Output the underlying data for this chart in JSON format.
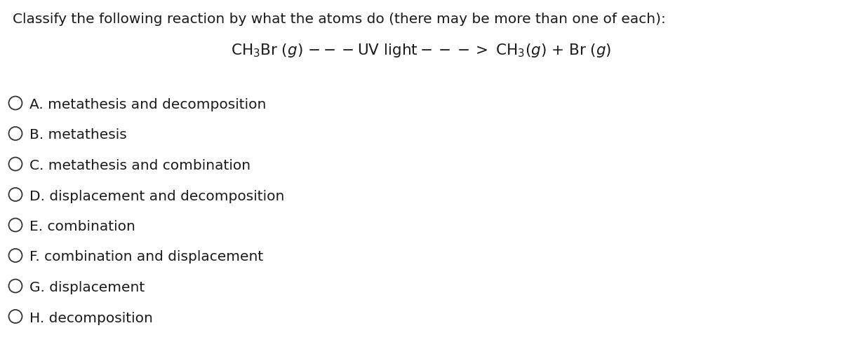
{
  "title": "Classify the following reaction by what the atoms do (there may be more than one of each):",
  "equation": "CH₃Br (g) ---UV light---> CH₃(g) + Br (g)",
  "options": [
    "A. metathesis and decomposition",
    "B. metathesis",
    "C. metathesis and combination",
    "D. displacement and decomposition",
    "E. combination",
    "F. combination and displacement",
    "G. displacement",
    "H. decomposition"
  ],
  "bg_color": "#ffffff",
  "text_color": "#1a1a1a",
  "title_fontsize": 14.5,
  "equation_fontsize": 15.5,
  "option_fontsize": 14.5,
  "figwidth": 12.0,
  "figheight": 4.89,
  "dpi": 100
}
